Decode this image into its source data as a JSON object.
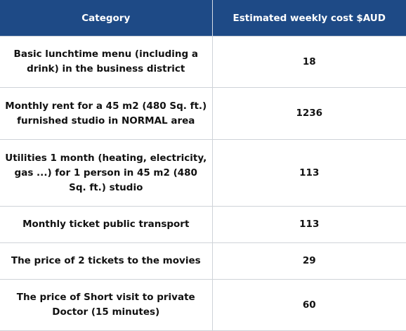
{
  "table": {
    "headers": [
      "Category",
      "Estimated weekly cost $AUD"
    ],
    "rows": [
      {
        "category": "Basic lunchtime menu (including a drink) in the business district",
        "cost": "18"
      },
      {
        "category": "Monthly rent for a 45 m2 (480 Sq. ft.) furnished studio in NORMAL area",
        "cost": "1236"
      },
      {
        "category": "Utilities 1 month (heating, electricity, gas ...) for 1 person in 45 m2 (480 Sq. ft.) studio",
        "cost": "113"
      },
      {
        "category": "Monthly ticket public transport",
        "cost": "113"
      },
      {
        "category": "The price of 2 tickets to the movies",
        "cost": "29"
      },
      {
        "category": "The price of Short visit to private Doctor (15 minutes)",
        "cost": "60"
      }
    ]
  },
  "colors": {
    "header_bg": "#1e4a86",
    "header_text": "#ffffff",
    "grid_line": "#cfd3d8"
  }
}
